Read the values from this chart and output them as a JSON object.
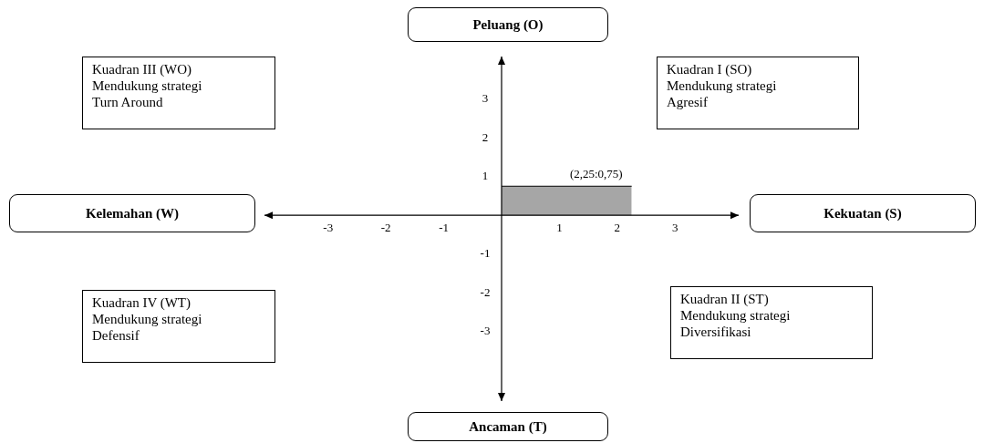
{
  "chart_data": {
    "type": "area",
    "x": [
      0,
      2.25
    ],
    "values": [
      0.75,
      0.75
    ],
    "color": "#a6a6a6",
    "xlim": [
      -4.1,
      4.1
    ],
    "ylim": [
      -4.8,
      4.1
    ],
    "xticks": [
      -3,
      -2,
      -1,
      1,
      2,
      3
    ],
    "yticks": [
      -3,
      -2,
      -1,
      1,
      2,
      3
    ],
    "legend": false,
    "annotations": [
      "Peluang (O)",
      "Ancaman (T)",
      "Kelemahan (W)",
      "Kekuatan (S)",
      "Kuadran III (WO)\nMendukung strategi\nTurn Around",
      "Kuadran I (SO)\nMendukung strategi\nAgresif",
      "Kuadran IV (WT)\nMendukung strategi\nDefensif",
      "Kuadran II (ST)\nMendukung strategi\nDiversifikasi",
      {
        "text": "(2,25:0,75)",
        "x": 2.25,
        "y": 0.75
      }
    ]
  }
}
